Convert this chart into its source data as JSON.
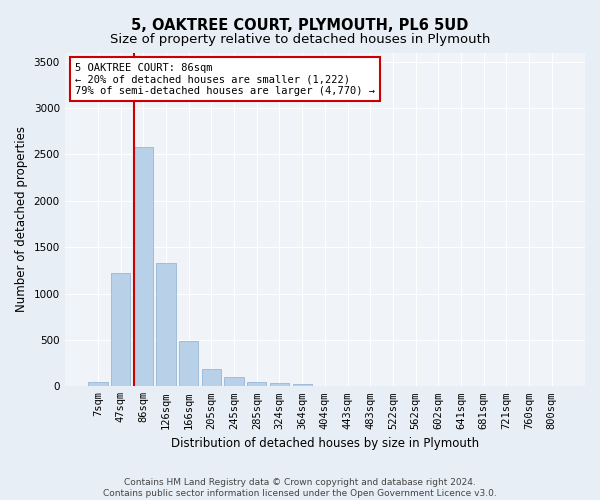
{
  "title": "5, OAKTREE COURT, PLYMOUTH, PL6 5UD",
  "subtitle": "Size of property relative to detached houses in Plymouth",
  "xlabel": "Distribution of detached houses by size in Plymouth",
  "ylabel": "Number of detached properties",
  "categories": [
    "7sqm",
    "47sqm",
    "86sqm",
    "126sqm",
    "166sqm",
    "205sqm",
    "245sqm",
    "285sqm",
    "324sqm",
    "364sqm",
    "404sqm",
    "443sqm",
    "483sqm",
    "522sqm",
    "562sqm",
    "602sqm",
    "641sqm",
    "681sqm",
    "721sqm",
    "760sqm",
    "800sqm"
  ],
  "values": [
    50,
    1220,
    2580,
    1330,
    490,
    185,
    100,
    50,
    40,
    30,
    0,
    0,
    0,
    0,
    0,
    0,
    0,
    0,
    0,
    0,
    0
  ],
  "bar_color": "#b8d0e8",
  "bar_edge_color": "#8ab0d0",
  "vline_index": 2,
  "vline_color": "#cc0000",
  "annotation_line1": "5 OAKTREE COURT: 86sqm",
  "annotation_line2": "← 20% of detached houses are smaller (1,222)",
  "annotation_line3": "79% of semi-detached houses are larger (4,770) →",
  "annotation_box_edgecolor": "#cc0000",
  "ylim": [
    0,
    3600
  ],
  "yticks": [
    0,
    500,
    1000,
    1500,
    2000,
    2500,
    3000,
    3500
  ],
  "footer_line1": "Contains HM Land Registry data © Crown copyright and database right 2024.",
  "footer_line2": "Contains public sector information licensed under the Open Government Licence v3.0.",
  "bg_color": "#e8eef5",
  "plot_bg_color": "#f0f4f8",
  "grid_color": "#ffffff",
  "title_fontsize": 10.5,
  "subtitle_fontsize": 9.5,
  "axis_label_fontsize": 8.5,
  "tick_fontsize": 7.5,
  "annotation_fontsize": 7.5,
  "footer_fontsize": 6.5
}
